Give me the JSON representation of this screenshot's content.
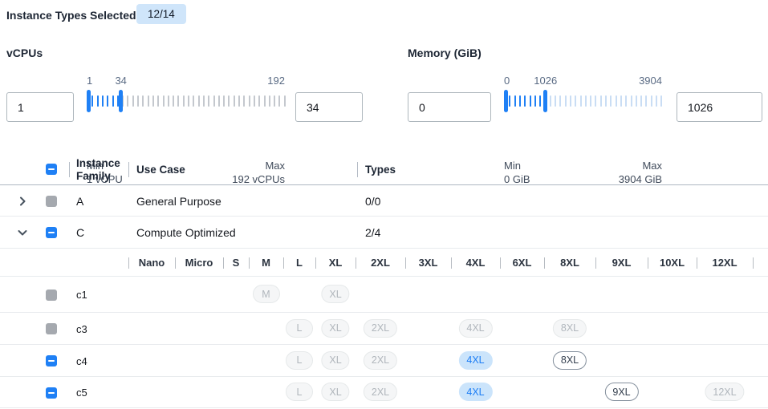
{
  "selection_summary": {
    "label": "Instance Types Selected:",
    "badge": "12/14"
  },
  "filters": {
    "vcpus": {
      "title": "vCPUs",
      "min_input": "1",
      "max_input": "34",
      "range_min": 1,
      "range_max": 192,
      "selected_min": 1,
      "selected_max": 34,
      "scale_left": "1",
      "scale_mid": "34",
      "scale_right": "192",
      "min_label": "Min",
      "min_caption": "1 vCPU",
      "max_label": "Max",
      "max_caption": "192 vCPUs",
      "active_tick_color": "#1f80f5",
      "inactive_tick_color": "#c4c8ce"
    },
    "memory": {
      "title": "Memory (GiB)",
      "min_input": "0",
      "max_input": "1026",
      "range_min": 0,
      "range_max": 3904,
      "selected_min": 0,
      "selected_max": 1026,
      "scale_left": "0",
      "scale_mid": "1026",
      "scale_right": "3904",
      "min_label": "Min",
      "min_caption": "0 GiB",
      "max_label": "Max",
      "max_caption": "3904 GiB",
      "active_tick_color": "#1f80f5",
      "inactive_tick_color": "#c9ddf4"
    }
  },
  "table": {
    "columns": [
      {
        "id": "family",
        "label": "Instance Family"
      },
      {
        "id": "use_case",
        "label": "Use Case"
      },
      {
        "id": "types",
        "label": "Types"
      }
    ],
    "header_checkbox_state": "indeterminate",
    "family_rows": [
      {
        "name": "A",
        "use_case": "General Purpose",
        "types": "0/0",
        "expanded": false,
        "checkbox": "disabled"
      },
      {
        "name": "C",
        "use_case": "Compute Optimized",
        "types": "2/4",
        "expanded": true,
        "checkbox": "indeterminate"
      }
    ],
    "size_columns": [
      "Nano",
      "Micro",
      "S",
      "M",
      "L",
      "XL",
      "2XL",
      "3XL",
      "4XL",
      "6XL",
      "8XL",
      "9XL",
      "10XL",
      "12XL"
    ],
    "type_rows": [
      {
        "name": "c1",
        "checkbox": "disabled",
        "pills": [
          {
            "size": "M",
            "state": "disabled"
          },
          {
            "size": "XL",
            "state": "disabled"
          }
        ]
      },
      {
        "name": "c3",
        "checkbox": "disabled",
        "pills": [
          {
            "size": "L",
            "state": "disabled"
          },
          {
            "size": "XL",
            "state": "disabled"
          },
          {
            "size": "2XL",
            "state": "disabled"
          },
          {
            "size": "4XL",
            "state": "disabled"
          },
          {
            "size": "8XL",
            "state": "disabled"
          }
        ]
      },
      {
        "name": "c4",
        "checkbox": "indeterminate",
        "pills": [
          {
            "size": "L",
            "state": "disabled"
          },
          {
            "size": "XL",
            "state": "disabled"
          },
          {
            "size": "2XL",
            "state": "disabled"
          },
          {
            "size": "4XL",
            "state": "selected"
          },
          {
            "size": "8XL",
            "state": "available"
          }
        ]
      },
      {
        "name": "c5",
        "checkbox": "indeterminate",
        "pills": [
          {
            "size": "L",
            "state": "disabled"
          },
          {
            "size": "XL",
            "state": "disabled"
          },
          {
            "size": "2XL",
            "state": "disabled"
          },
          {
            "size": "4XL",
            "state": "selected"
          },
          {
            "size": "9XL",
            "state": "available"
          },
          {
            "size": "12XL",
            "state": "disabled"
          }
        ]
      }
    ]
  },
  "colors": {
    "accent_blue": "#1f80f5",
    "badge_bg": "#cfe5fa",
    "selected_pill_bg": "#cbe4fb",
    "disabled_checkbox": "#a5a9af"
  }
}
